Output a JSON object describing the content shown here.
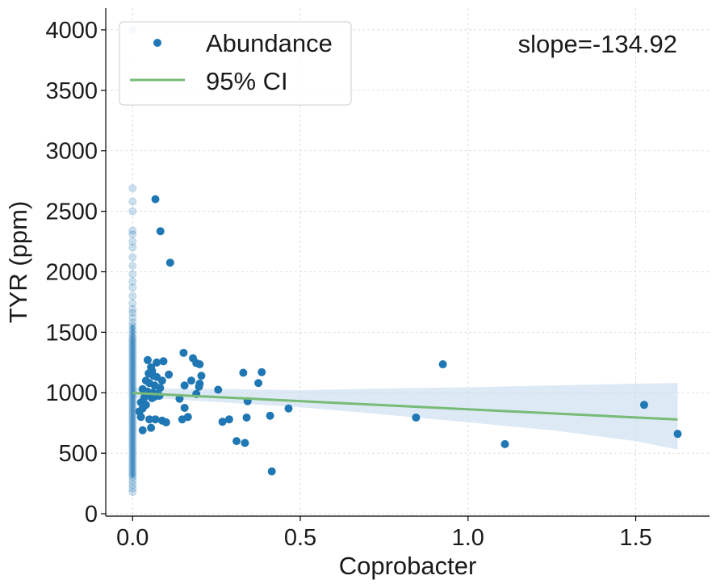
{
  "chart_data": {
    "type": "scatter",
    "xlabel": "Coprobacter",
    "ylabel": "TYR (ppm)",
    "xlim": [
      -0.08,
      1.72
    ],
    "ylim": [
      -20,
      4180
    ],
    "xticks": [
      0.0,
      0.5,
      1.0,
      1.5
    ],
    "xtick_labels": [
      "0.0",
      "0.5",
      "1.0",
      "1.5"
    ],
    "yticks": [
      0,
      500,
      1000,
      1500,
      2000,
      2500,
      3000,
      3500,
      4000
    ],
    "ytick_labels": [
      "0",
      "500",
      "1000",
      "1500",
      "2000",
      "2500",
      "3000",
      "3500",
      "4000"
    ],
    "grid": true,
    "legend": {
      "position": "top-left",
      "entries": [
        {
          "label": "Abundance",
          "kind": "marker"
        },
        {
          "label": "95% CI",
          "kind": "line"
        }
      ]
    },
    "annotation": "slope=-134.92",
    "colors": {
      "points": "#1f77b4",
      "fit": "#77bb77",
      "ci": "#c6dbef"
    },
    "fit_line": {
      "x": [
        0.0,
        1.625
      ],
      "y": [
        998,
        779
      ]
    },
    "ci_band": {
      "x": [
        0.0,
        0.1,
        0.3,
        0.5,
        0.75,
        1.0,
        1.25,
        1.5,
        1.625
      ],
      "lower": [
        955,
        950,
        915,
        880,
        820,
        755,
        690,
        600,
        530
      ],
      "upper": [
        1040,
        1035,
        1030,
        1020,
        1035,
        1045,
        1060,
        1075,
        1080
      ]
    },
    "zero_points": [
      4000,
      2690,
      2580,
      2500,
      2340,
      2310,
      2250,
      2200,
      2120,
      2050,
      1980,
      1920,
      1870,
      1800,
      1740,
      1690,
      1660,
      1620,
      1580,
      1550,
      1520,
      1490,
      1460,
      1440,
      1420,
      1400,
      1380,
      1360,
      1340,
      1320,
      1300,
      1280,
      1260,
      1240,
      1220,
      1200,
      1180,
      1160,
      1140,
      1120,
      1100,
      1080,
      1060,
      1040,
      1020,
      1000,
      980,
      960,
      940,
      920,
      900,
      880,
      860,
      840,
      820,
      800,
      780,
      760,
      740,
      720,
      700,
      680,
      660,
      640,
      620,
      600,
      580,
      560,
      540,
      520,
      500,
      480,
      460,
      440,
      420,
      400,
      380,
      360,
      340,
      320,
      300,
      270,
      240,
      210,
      180
    ],
    "points": [
      {
        "x": 0.068,
        "y": 2600
      },
      {
        "x": 0.083,
        "y": 2335
      },
      {
        "x": 0.112,
        "y": 2075
      },
      {
        "x": 0.152,
        "y": 1330
      },
      {
        "x": 0.092,
        "y": 1260
      },
      {
        "x": 0.072,
        "y": 1250
      },
      {
        "x": 0.045,
        "y": 1270
      },
      {
        "x": 0.055,
        "y": 1210
      },
      {
        "x": 0.058,
        "y": 1180
      },
      {
        "x": 0.048,
        "y": 1160
      },
      {
        "x": 0.062,
        "y": 1140
      },
      {
        "x": 0.072,
        "y": 1130
      },
      {
        "x": 0.108,
        "y": 1150
      },
      {
        "x": 0.088,
        "y": 1100
      },
      {
        "x": 0.04,
        "y": 1100
      },
      {
        "x": 0.05,
        "y": 1080
      },
      {
        "x": 0.066,
        "y": 1060
      },
      {
        "x": 0.082,
        "y": 1040
      },
      {
        "x": 0.03,
        "y": 1030
      },
      {
        "x": 0.044,
        "y": 1010
      },
      {
        "x": 0.06,
        "y": 1000
      },
      {
        "x": 0.075,
        "y": 990
      },
      {
        "x": 0.052,
        "y": 980
      },
      {
        "x": 0.068,
        "y": 970
      },
      {
        "x": 0.035,
        "y": 960
      },
      {
        "x": 0.08,
        "y": 975
      },
      {
        "x": 0.058,
        "y": 955
      },
      {
        "x": 0.025,
        "y": 920
      },
      {
        "x": 0.04,
        "y": 900
      },
      {
        "x": 0.03,
        "y": 870
      },
      {
        "x": 0.02,
        "y": 845
      },
      {
        "x": 0.025,
        "y": 800
      },
      {
        "x": 0.05,
        "y": 780
      },
      {
        "x": 0.068,
        "y": 780
      },
      {
        "x": 0.088,
        "y": 770
      },
      {
        "x": 0.1,
        "y": 755
      },
      {
        "x": 0.055,
        "y": 710
      },
      {
        "x": 0.03,
        "y": 690
      },
      {
        "x": 0.18,
        "y": 1285
      },
      {
        "x": 0.19,
        "y": 1245
      },
      {
        "x": 0.2,
        "y": 1235
      },
      {
        "x": 0.205,
        "y": 1140
      },
      {
        "x": 0.175,
        "y": 1100
      },
      {
        "x": 0.2,
        "y": 1075
      },
      {
        "x": 0.155,
        "y": 1060
      },
      {
        "x": 0.198,
        "y": 1050
      },
      {
        "x": 0.19,
        "y": 990
      },
      {
        "x": 0.14,
        "y": 950
      },
      {
        "x": 0.155,
        "y": 875
      },
      {
        "x": 0.165,
        "y": 800
      },
      {
        "x": 0.148,
        "y": 780
      },
      {
        "x": 0.255,
        "y": 1025
      },
      {
        "x": 0.268,
        "y": 760
      },
      {
        "x": 0.288,
        "y": 780
      },
      {
        "x": 0.31,
        "y": 600
      },
      {
        "x": 0.33,
        "y": 1165
      },
      {
        "x": 0.335,
        "y": 585
      },
      {
        "x": 0.34,
        "y": 795
      },
      {
        "x": 0.343,
        "y": 930
      },
      {
        "x": 0.375,
        "y": 1080
      },
      {
        "x": 0.385,
        "y": 1170
      },
      {
        "x": 0.41,
        "y": 810
      },
      {
        "x": 0.415,
        "y": 350
      },
      {
        "x": 0.465,
        "y": 870
      },
      {
        "x": 0.845,
        "y": 795
      },
      {
        "x": 0.925,
        "y": 1235
      },
      {
        "x": 1.11,
        "y": 575
      },
      {
        "x": 1.525,
        "y": 900
      },
      {
        "x": 1.625,
        "y": 660
      }
    ]
  }
}
